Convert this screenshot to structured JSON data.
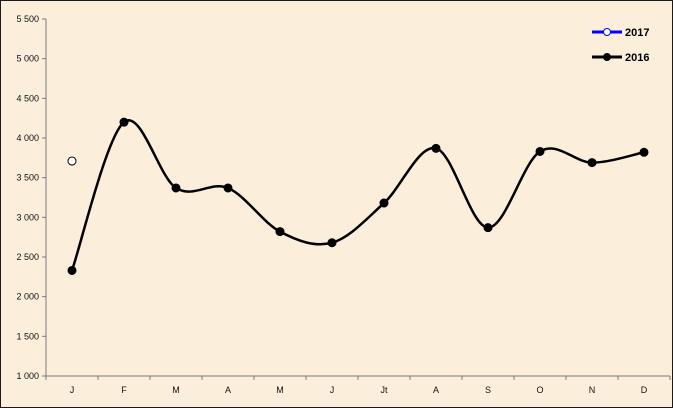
{
  "chart_data": {
    "type": "line",
    "categories": [
      "J",
      "F",
      "M",
      "A",
      "M",
      "J",
      "Jt",
      "A",
      "S",
      "O",
      "N",
      "D"
    ],
    "ylim": [
      1000,
      5500
    ],
    "yticks": [
      1000,
      1500,
      2000,
      2500,
      3000,
      3500,
      4000,
      4500,
      5000,
      5500
    ],
    "ytick_labels": [
      "1 000",
      "1 500",
      "2 000",
      "2 500",
      "3 000",
      "3 500",
      "4 000",
      "4 500",
      "5 000",
      "5 500"
    ],
    "grid": false,
    "smooth": true,
    "legend_position": "top-right",
    "series": [
      {
        "name": "2017",
        "color": "#0000ff",
        "marker": "open-circle",
        "values": [
          3710,
          null,
          null,
          null,
          null,
          null,
          null,
          null,
          null,
          null,
          null,
          null
        ]
      },
      {
        "name": "2016",
        "color": "#000000",
        "marker": "filled-circle",
        "values": [
          2330,
          4200,
          3370,
          3370,
          2820,
          2680,
          3180,
          3870,
          2870,
          3830,
          3690,
          3820
        ]
      }
    ]
  }
}
